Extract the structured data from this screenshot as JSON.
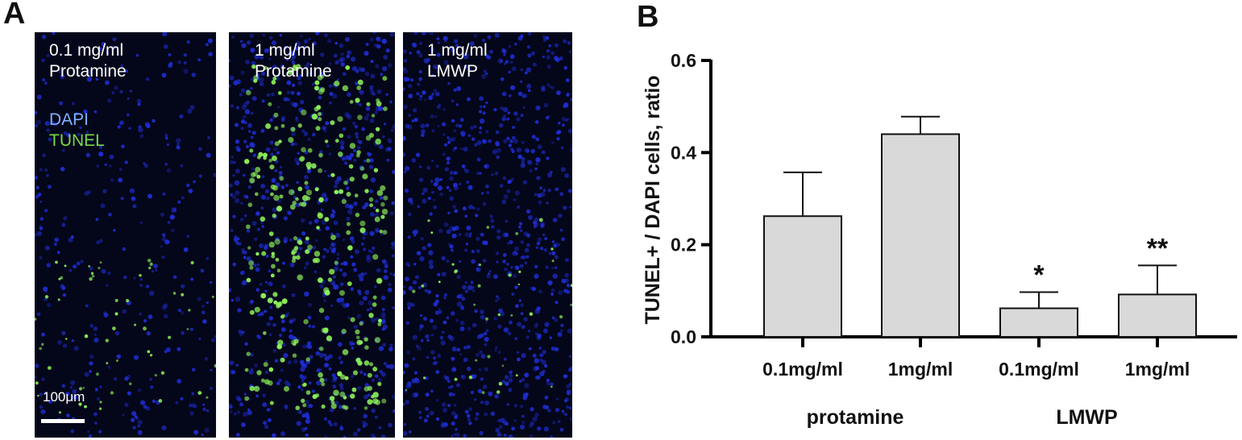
{
  "panel_a": {
    "letter": "A",
    "images": [
      {
        "label_line1": "0.1 mg/ml",
        "label_line2": "Protamine",
        "tunel_density": 0.18,
        "dapi_density": 0.35
      },
      {
        "label_line1": "1 mg/ml",
        "label_line2": "Protamine",
        "tunel_density": 0.9,
        "dapi_density": 0.8
      },
      {
        "label_line1": "1 mg/ml",
        "label_line2": "LMWP",
        "tunel_density": 0.12,
        "dapi_density": 0.9
      }
    ],
    "stain_legend": {
      "dapi": "DAPI",
      "tunel": "TUNEL"
    },
    "scale_bar_label": "100μm",
    "colors": {
      "dapi": "#1f2fd6",
      "tunel": "#8cf25a",
      "background": "#04061a"
    }
  },
  "panel_b": {
    "letter": "B"
  },
  "chart_data": {
    "type": "bar",
    "ylabel": "TUNEL+ / DAPI cells, ratio",
    "ylim": [
      0,
      0.6
    ],
    "yticks": [
      "0.0",
      "0.2",
      "0.4",
      "0.6"
    ],
    "categories": [
      "0.1mg/ml",
      "1mg/ml",
      "0.1mg/ml",
      "1mg/ml"
    ],
    "groups": [
      {
        "label": "protamine",
        "span": [
          0,
          1
        ]
      },
      {
        "label": "LMWP",
        "span": [
          2,
          3
        ]
      }
    ],
    "values": [
      0.262,
      0.44,
      0.062,
      0.092
    ],
    "errors": [
      0.095,
      0.038,
      0.035,
      0.063
    ],
    "significance": [
      "",
      "",
      "*",
      "**"
    ],
    "bar_color": "#d9d9d9",
    "error_bars": "upper",
    "grid": false
  }
}
